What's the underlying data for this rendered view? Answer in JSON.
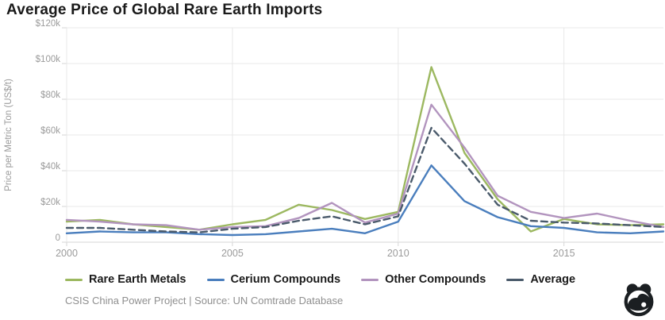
{
  "title": "Average Price of Global Rare Earth Imports",
  "footer": {
    "source_line": "CSIS China Power Project | Source: UN Comtrade Database"
  },
  "logo": {
    "name": "china-power-panda-logo"
  },
  "colors": {
    "title_text": "#1a1a1a",
    "axis_text": "#9b9b9b",
    "grid_line": "#e8e8e8",
    "axis_line": "#d6d6d6",
    "logo_ink": "#1b1f22",
    "background": "#ffffff"
  },
  "chart_data": {
    "type": "line",
    "title": "Average Price of Global Rare Earth Imports",
    "xlabel": "",
    "ylabel": "Price per Metric Ton (US$/t)",
    "ylim": [
      0,
      120000
    ],
    "grid": true,
    "legend_position": "bottom",
    "x": [
      2000,
      2001,
      2002,
      2003,
      2004,
      2005,
      2006,
      2007,
      2008,
      2009,
      2010,
      2011,
      2012,
      2013,
      2014,
      2015,
      2016,
      2017,
      2018
    ],
    "xticks": [
      {
        "value": 2000,
        "label": "2000"
      },
      {
        "value": 2005,
        "label": "2005"
      },
      {
        "value": 2010,
        "label": "2010"
      },
      {
        "value": 2015,
        "label": "2015"
      }
    ],
    "yticks": [
      {
        "value": 120000,
        "label": "$120k"
      },
      {
        "value": 100000,
        "label": "$100k"
      },
      {
        "value": 80000,
        "label": "$80k"
      },
      {
        "value": 60000,
        "label": "$60k"
      },
      {
        "value": 40000,
        "label": "$40k"
      },
      {
        "value": 20000,
        "label": "$20k"
      },
      {
        "value": 0,
        "label": "0"
      }
    ],
    "series": [
      {
        "name": "Rare Earth Metals",
        "color": "#9CB860",
        "dash": "solid",
        "values": [
          11500,
          12500,
          10000,
          8500,
          7000,
          10000,
          12500,
          21000,
          18000,
          13000,
          17000,
          98000,
          50000,
          24000,
          6000,
          13000,
          10000,
          9500,
          10000
        ]
      },
      {
        "name": "Cerium Compounds",
        "color": "#4A7EBD",
        "dash": "solid",
        "values": [
          5000,
          6000,
          5500,
          5500,
          4500,
          4000,
          4500,
          6000,
          7500,
          5000,
          11500,
          43000,
          23000,
          14000,
          9000,
          8000,
          5500,
          5000,
          6000
        ]
      },
      {
        "name": "Other Compounds",
        "color": "#B294BE",
        "dash": "solid",
        "values": [
          12500,
          11500,
          10000,
          9500,
          7000,
          8500,
          9000,
          13500,
          22000,
          11000,
          16000,
          77000,
          53000,
          26000,
          17000,
          13500,
          16000,
          12000,
          8500
        ]
      },
      {
        "name": "Average",
        "color": "#4A5A6B",
        "dash": "dashed",
        "values": [
          8000,
          8000,
          7000,
          6000,
          5500,
          7500,
          8500,
          12000,
          14500,
          10000,
          14500,
          64000,
          44000,
          21000,
          12000,
          11000,
          10500,
          9500,
          8500
        ]
      }
    ]
  }
}
